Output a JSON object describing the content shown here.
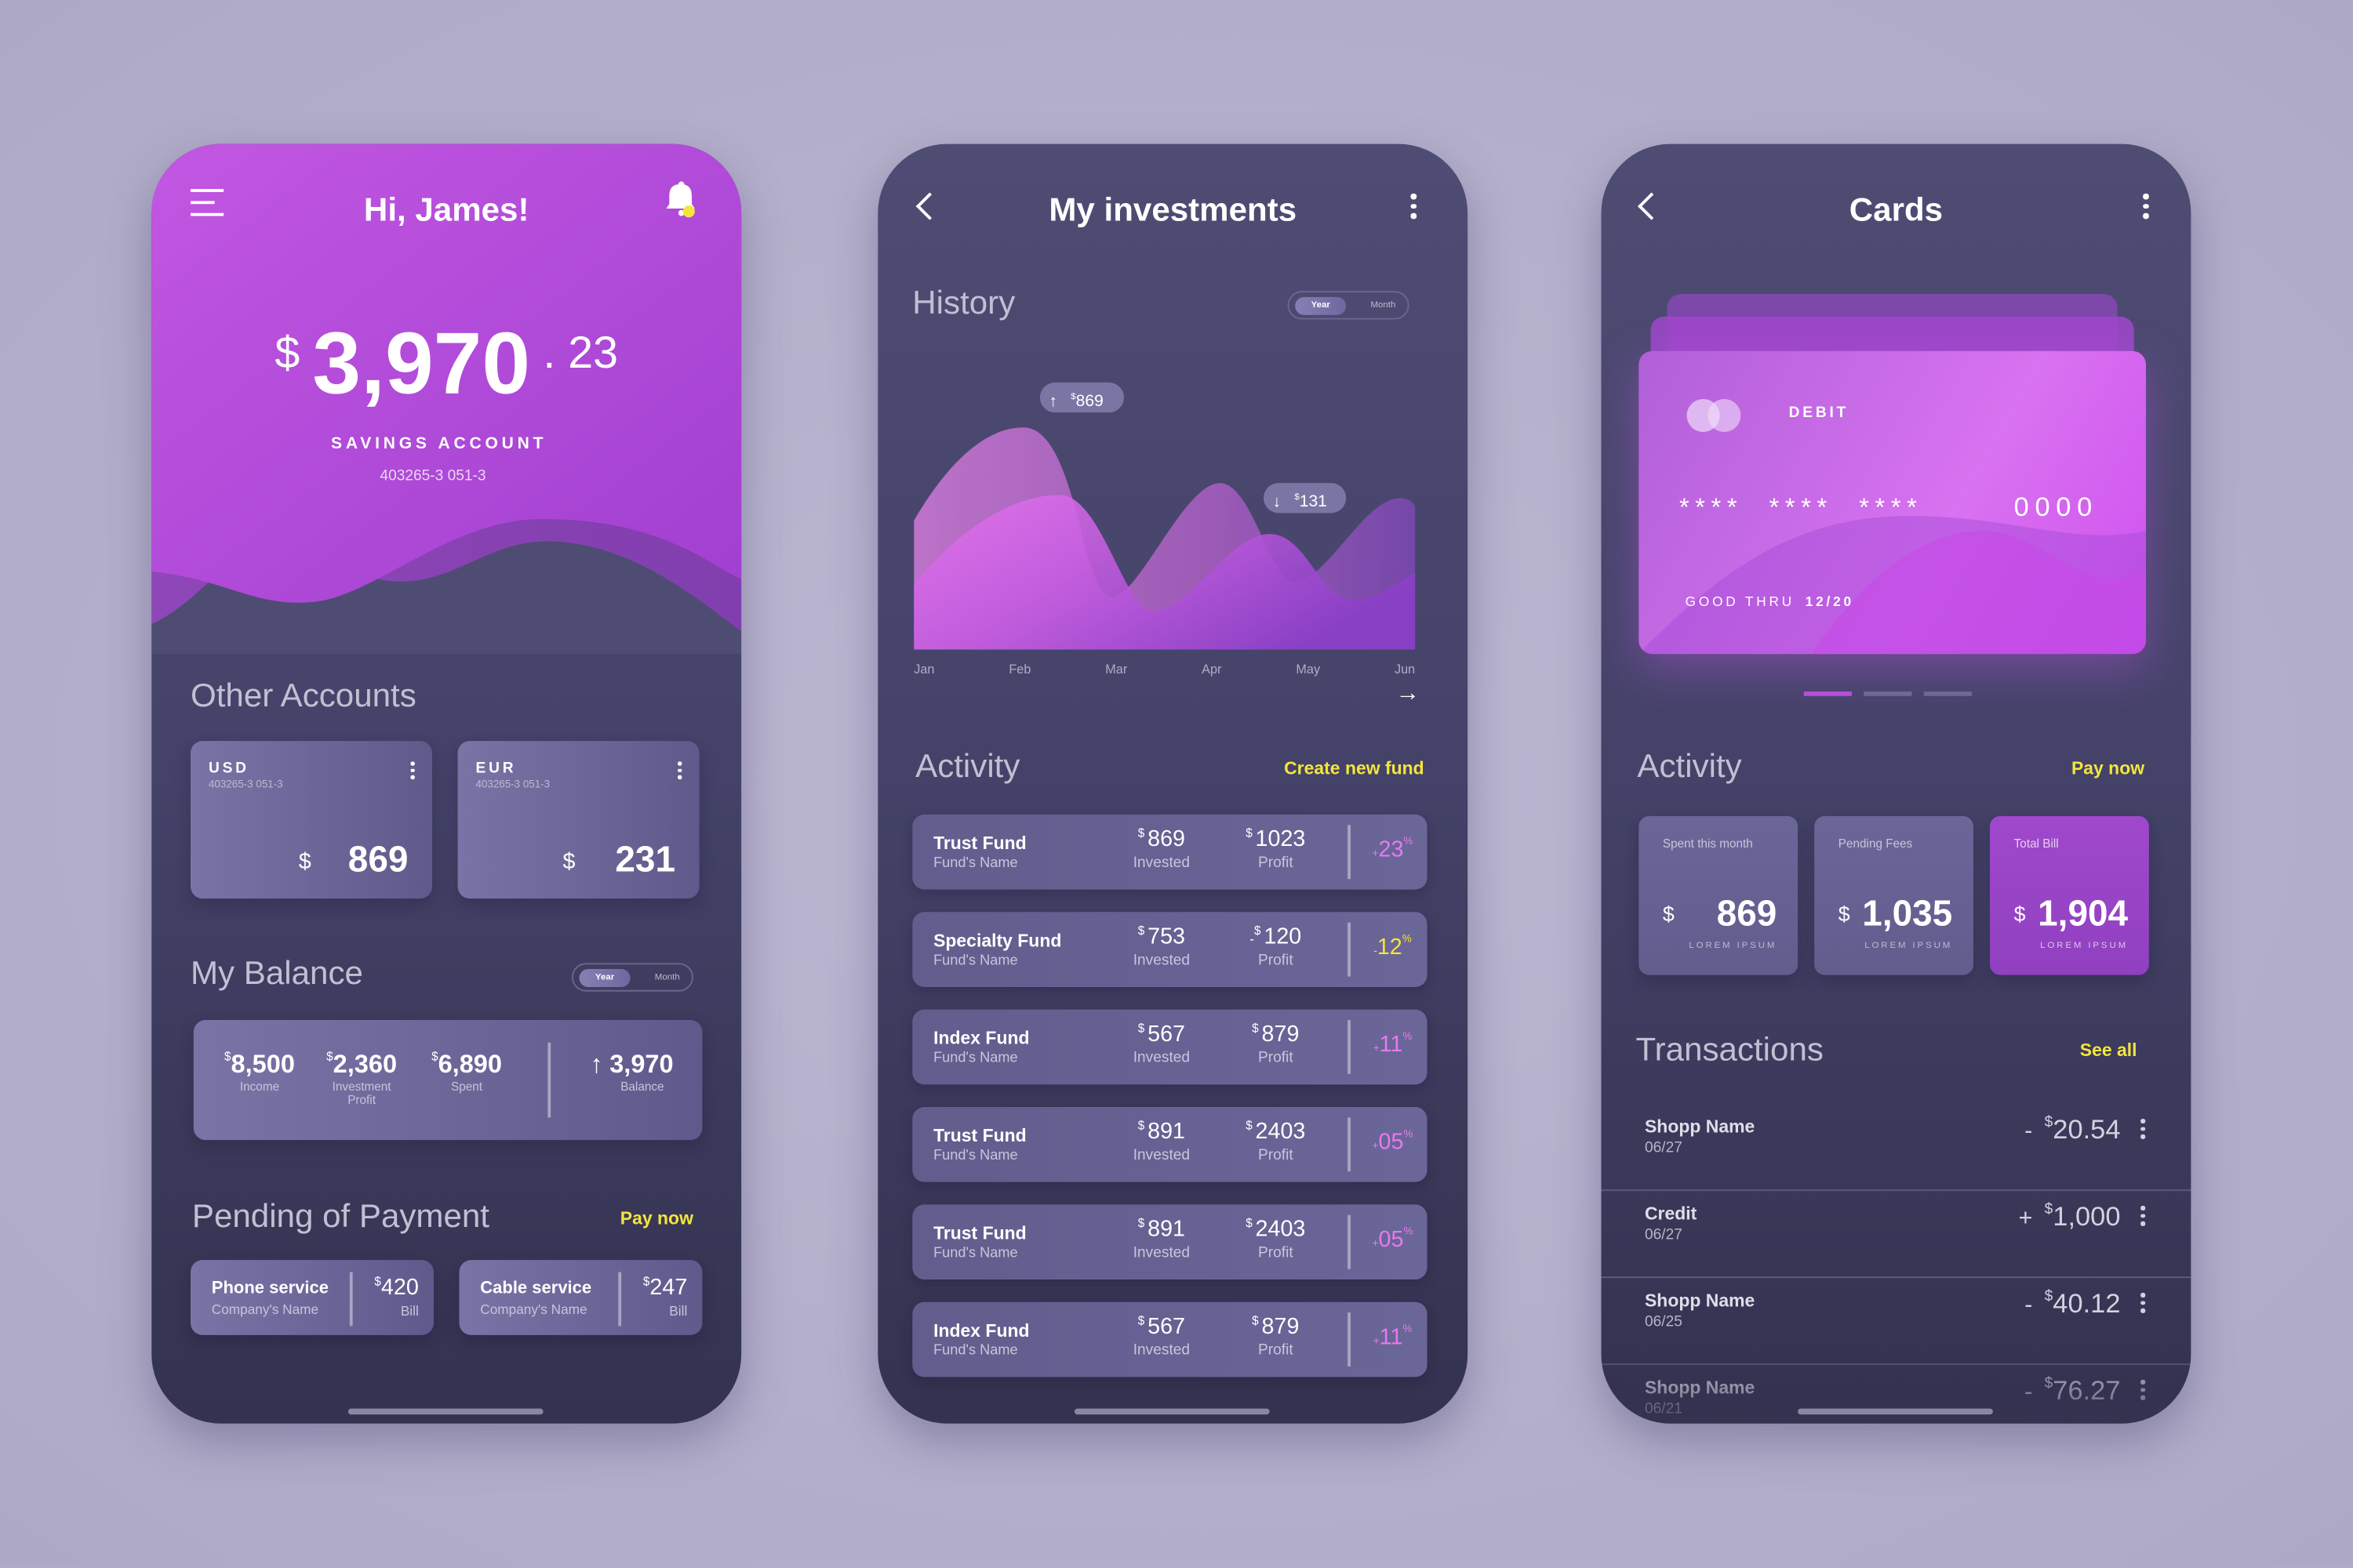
{
  "colors": {
    "background": "#b5b1cb",
    "accent_purple": "#c45fe0",
    "accent_yellow": "#f3e53e",
    "positive_pink": "#e879f0",
    "card": "#6b6698"
  },
  "home": {
    "greeting": "Hi, James!",
    "icons": [
      "menu-icon",
      "bell-icon"
    ],
    "balance": {
      "currency": "$",
      "whole": "3,970",
      "cents": ". 23"
    },
    "account_label": "SAVINGS ACCOUNT",
    "account_number": "403265-3 051-3",
    "other_accounts_title": "Other Accounts",
    "accounts": [
      {
        "currency_code": "USD",
        "number": "403265-3 051-3",
        "symbol": "$",
        "amount": "869"
      },
      {
        "currency_code": "EUR",
        "number": "403265-3 051-3",
        "symbol": "$",
        "amount": "231"
      }
    ],
    "my_balance_title": "My Balance",
    "toggle": {
      "on": "Year",
      "off": "Month"
    },
    "balance_stats": [
      {
        "symbol": "$",
        "value": "8,500",
        "label": "Income"
      },
      {
        "symbol": "$",
        "value": "2,360",
        "label": "Investment Profit"
      },
      {
        "symbol": "$",
        "value": "6,890",
        "label": "Spent"
      }
    ],
    "balance_total": {
      "value": "3,970",
      "label": "Balance"
    },
    "pending_title": "Pending of Payment",
    "pay_now": "Pay now",
    "payments": [
      {
        "name": "Phone service",
        "company": "Company's Name",
        "symbol": "$",
        "amount": "420",
        "label": "Bill"
      },
      {
        "name": "Cable service",
        "company": "Company's Name",
        "symbol": "$",
        "amount": "247",
        "label": "Bill"
      }
    ]
  },
  "investments": {
    "title": "My investments",
    "history_title": "History",
    "toggle": {
      "on": "Year",
      "off": "Month"
    },
    "activity_title": "Activity",
    "create_fund": "Create new fund",
    "funds": [
      {
        "name": "Trust Fund",
        "sub": "Fund's Name",
        "invested": "869",
        "invested_label": "Invested",
        "profit_prefix": "",
        "profit": "1023",
        "profit_label": "Profit",
        "sign": "+",
        "pct": "23",
        "pct_unit": "%",
        "positive": true
      },
      {
        "name": "Specialty Fund",
        "sub": "Fund's Name",
        "invested": "753",
        "invested_label": "Invested",
        "profit_prefix": "-",
        "profit": "120",
        "profit_label": "Profit",
        "sign": "-",
        "pct": "12",
        "pct_unit": "%",
        "positive": false
      },
      {
        "name": "Index Fund",
        "sub": "Fund's Name",
        "invested": "567",
        "invested_label": "Invested",
        "profit_prefix": "",
        "profit": "879",
        "profit_label": "Profit",
        "sign": "+",
        "pct": "11",
        "pct_unit": "%",
        "positive": true
      },
      {
        "name": "Trust Fund",
        "sub": "Fund's Name",
        "invested": "891",
        "invested_label": "Invested",
        "profit_prefix": "",
        "profit": "2403",
        "profit_label": "Profit",
        "sign": "+",
        "pct": "05",
        "pct_unit": "%",
        "positive": true
      },
      {
        "name": "Trust Fund",
        "sub": "Fund's Name",
        "invested": "891",
        "invested_label": "Invested",
        "profit_prefix": "",
        "profit": "2403",
        "profit_label": "Profit",
        "sign": "+",
        "pct": "05",
        "pct_unit": "%",
        "positive": true
      },
      {
        "name": "Index Fund",
        "sub": "Fund's Name",
        "invested": "567",
        "invested_label": "Invested",
        "profit_prefix": "",
        "profit": "879",
        "profit_label": "Profit",
        "sign": "+",
        "pct": "11",
        "pct_unit": "%",
        "positive": true
      }
    ]
  },
  "chart_data": {
    "type": "area",
    "categories": [
      "Jan",
      "Feb",
      "Mar",
      "Apr",
      "May",
      "Jun"
    ],
    "annotations": [
      {
        "direction": "up",
        "symbol": "$",
        "value": "869"
      },
      {
        "direction": "down",
        "symbol": "$",
        "value": "131"
      }
    ],
    "series_count": 2,
    "grid": false
  },
  "cards": {
    "title": "Cards",
    "card": {
      "type": "DEBIT",
      "mask": "****  ****  ****",
      "last4": "0000",
      "good_thru_label": "GOOD THRU",
      "expiry": "12/20"
    },
    "card_pager": {
      "count": 3,
      "active": 1
    },
    "activity_title": "Activity",
    "pay_now": "Pay now",
    "tiles": [
      {
        "title": "Spent this month",
        "symbol": "$",
        "amount": "869",
        "caption": "LOREM IPSUM"
      },
      {
        "title": "Pending Fees",
        "symbol": "$",
        "amount": "1,035",
        "caption": "LOREM IPSUM"
      },
      {
        "title": "Total Bill",
        "symbol": "$",
        "amount": "1,904",
        "caption": "LOREM IPSUM"
      }
    ],
    "transactions_title": "Transactions",
    "see_all": "See all",
    "transactions": [
      {
        "name": "Shopp Name",
        "date": "06/27",
        "sign": "-",
        "symbol": "$",
        "amount": "20.54"
      },
      {
        "name": "Credit",
        "date": "06/27",
        "sign": "+",
        "symbol": "$",
        "amount": "1,000"
      },
      {
        "name": "Shopp Name",
        "date": "06/25",
        "sign": "-",
        "symbol": "$",
        "amount": "40.12"
      },
      {
        "name": "Shopp Name",
        "date": "06/21",
        "sign": "-",
        "symbol": "$",
        "amount": "76.27"
      }
    ]
  }
}
